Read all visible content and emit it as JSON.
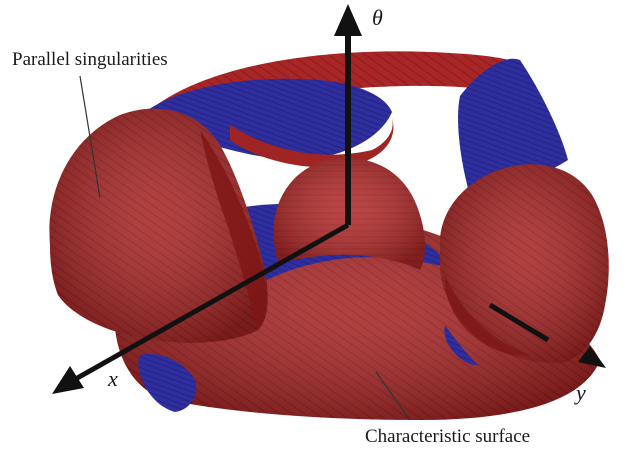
{
  "annotations": {
    "top_left": "Parallel singularities",
    "bottom_right": "Characteristic surface"
  },
  "axes": {
    "vertical": "θ",
    "left": "x",
    "right": "y"
  },
  "colors": {
    "red_surface": "#b32a2a",
    "red_dark": "#7e1515",
    "blue_surface": "#2e2e9e",
    "axis": "#111111",
    "background": "#ffffff"
  }
}
